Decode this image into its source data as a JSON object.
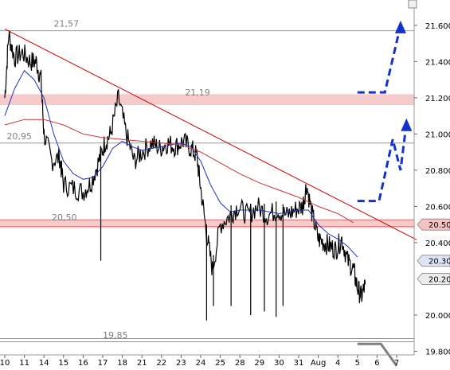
{
  "chart_data": {
    "type": "line",
    "title": "",
    "xlabel": "",
    "ylabel": "",
    "ylim": [
      19.78,
      21.74
    ],
    "y_ticks": [
      "21.600",
      "21.400",
      "21.200",
      "21.000",
      "20.800",
      "20.600",
      "20.400",
      "20.000",
      "19.800"
    ],
    "x_labels": [
      {
        "label": "10",
        "day": 0
      },
      {
        "label": "11",
        "day": 1
      },
      {
        "label": "14",
        "day": 2
      },
      {
        "label": "15",
        "day": 3
      },
      {
        "label": "16",
        "day": 4
      },
      {
        "label": "17",
        "day": 5
      },
      {
        "label": "18",
        "day": 6
      },
      {
        "label": "21",
        "day": 7
      },
      {
        "label": "22",
        "day": 8
      },
      {
        "label": "23",
        "day": 9
      },
      {
        "label": "24",
        "day": 10
      },
      {
        "label": "25",
        "day": 11
      },
      {
        "label": "28",
        "day": 12
      },
      {
        "label": "29",
        "day": 13
      },
      {
        "label": "30",
        "day": 14
      },
      {
        "label": "31",
        "day": 15
      },
      {
        "label": "Aug",
        "day": 16
      },
      {
        "label": "4",
        "day": 17
      },
      {
        "label": "5",
        "day": 18
      },
      {
        "label": "6",
        "day": 19
      },
      {
        "label": "7",
        "day": 20
      }
    ],
    "price_tags": [
      {
        "label": "20.50",
        "y": 20.5,
        "bg": "#f4c2c2"
      },
      {
        "label": "20.30",
        "y": 20.3,
        "bg": "#dde4f6"
      },
      {
        "label": "20.20",
        "y": 20.2,
        "bg": "#ececec"
      }
    ],
    "level_labels": [
      {
        "text": "21,57",
        "y": 21.57,
        "day": 2.5
      },
      {
        "text": "21,19",
        "y": 21.19,
        "day": 9.2
      },
      {
        "text": "20,95",
        "y": 20.95,
        "day": 0.1
      },
      {
        "text": "20,50",
        "y": 20.5,
        "day": 2.4
      },
      {
        "text": "19,85",
        "y": 19.85,
        "day": 5.0
      }
    ],
    "horizontal_lines": [
      {
        "y": 21.57,
        "color": "#999999",
        "width": 1
      },
      {
        "y": 20.95,
        "color": "#999999",
        "width": 1
      },
      {
        "y": 19.87,
        "color": "#7aa457",
        "width": 1
      }
    ],
    "bands": [
      {
        "y1": 21.16,
        "y2": 21.22,
        "color": "#f4c2c2"
      },
      {
        "y1": 20.48,
        "y2": 20.53,
        "color": "#f4c2c2"
      }
    ],
    "band_lines": [
      {
        "y": 20.525,
        "color": "#d98080"
      },
      {
        "y": 20.49,
        "color": "#d98080"
      }
    ],
    "trendline": {
      "color": "#cc0000",
      "points": [
        [
          0,
          21.58
        ],
        [
          20,
          20.46
        ]
      ]
    },
    "series": [
      {
        "name": "",
        "color": "#000000",
        "points": [
          [
            0,
            21.2
          ],
          [
            0.2,
            21.55
          ],
          [
            0.5,
            21.42
          ],
          [
            0.9,
            21.45
          ],
          [
            1.3,
            21.4
          ],
          [
            1.6,
            21.4
          ],
          [
            1.85,
            21.3
          ],
          [
            2.0,
            21.0
          ],
          [
            2.4,
            20.85
          ],
          [
            2.8,
            20.87
          ],
          [
            3.0,
            20.72
          ],
          [
            3.5,
            20.7
          ],
          [
            4.0,
            20.68
          ],
          [
            4.4,
            20.73
          ],
          [
            4.8,
            20.85
          ],
          [
            5.1,
            20.95
          ],
          [
            5.4,
            21.0
          ],
          [
            5.8,
            21.2
          ],
          [
            6.2,
            21.0
          ],
          [
            6.6,
            20.85
          ],
          [
            7.0,
            20.9
          ],
          [
            7.5,
            20.95
          ],
          [
            7.9,
            20.92
          ],
          [
            8.3,
            20.95
          ],
          [
            8.7,
            20.93
          ],
          [
            9.1,
            20.96
          ],
          [
            9.5,
            20.92
          ],
          [
            9.8,
            20.88
          ],
          [
            10.0,
            20.7
          ],
          [
            10.3,
            20.45
          ],
          [
            10.6,
            20.25
          ],
          [
            11.0,
            20.5
          ],
          [
            11.5,
            20.55
          ],
          [
            11.9,
            20.6
          ],
          [
            12.4,
            20.55
          ],
          [
            12.9,
            20.6
          ],
          [
            13.4,
            20.55
          ],
          [
            13.9,
            20.58
          ],
          [
            14.4,
            20.55
          ],
          [
            14.8,
            20.58
          ],
          [
            15.2,
            20.6
          ],
          [
            15.4,
            20.72
          ],
          [
            15.7,
            20.55
          ],
          [
            16.0,
            20.42
          ],
          [
            16.3,
            20.4
          ],
          [
            16.6,
            20.38
          ],
          [
            16.9,
            20.36
          ],
          [
            17.2,
            20.42
          ],
          [
            17.5,
            20.3
          ],
          [
            17.8,
            20.25
          ],
          [
            18.0,
            20.15
          ],
          [
            18.2,
            20.1
          ],
          [
            18.4,
            20.17
          ]
        ]
      },
      {
        "name": "",
        "color": "#2233bb",
        "points": [
          [
            0,
            21.1
          ],
          [
            0.5,
            21.25
          ],
          [
            1.0,
            21.35
          ],
          [
            1.5,
            21.3
          ],
          [
            2.0,
            21.2
          ],
          [
            2.5,
            21.0
          ],
          [
            3.0,
            20.85
          ],
          [
            3.5,
            20.78
          ],
          [
            4.0,
            20.75
          ],
          [
            4.5,
            20.76
          ],
          [
            5.0,
            20.82
          ],
          [
            5.5,
            20.92
          ],
          [
            6.0,
            20.96
          ],
          [
            6.5,
            20.93
          ],
          [
            7.0,
            20.91
          ],
          [
            7.5,
            20.92
          ],
          [
            8.0,
            20.93
          ],
          [
            8.5,
            20.94
          ],
          [
            9.0,
            20.95
          ],
          [
            9.5,
            20.93
          ],
          [
            10.0,
            20.85
          ],
          [
            10.5,
            20.72
          ],
          [
            11.0,
            20.62
          ],
          [
            11.5,
            20.57
          ],
          [
            12.0,
            20.58
          ],
          [
            12.5,
            20.58
          ],
          [
            13.0,
            20.58
          ],
          [
            13.5,
            20.57
          ],
          [
            14.0,
            20.56
          ],
          [
            14.5,
            20.57
          ],
          [
            15.0,
            20.58
          ],
          [
            15.5,
            20.58
          ],
          [
            16.0,
            20.5
          ],
          [
            16.5,
            20.45
          ],
          [
            17.0,
            20.42
          ],
          [
            17.5,
            20.38
          ],
          [
            18.0,
            20.32
          ]
        ]
      },
      {
        "name": "",
        "color": "#cc3333",
        "points": [
          [
            0,
            21.05
          ],
          [
            1.0,
            21.08
          ],
          [
            2.0,
            21.08
          ],
          [
            3.0,
            21.05
          ],
          [
            4.0,
            21.0
          ],
          [
            5.0,
            20.98
          ],
          [
            6.0,
            20.97
          ],
          [
            7.0,
            20.96
          ],
          [
            8.0,
            20.95
          ],
          [
            9.0,
            20.94
          ],
          [
            10.0,
            20.9
          ],
          [
            11.0,
            20.84
          ],
          [
            12.0,
            20.78
          ],
          [
            13.0,
            20.73
          ],
          [
            14.0,
            20.69
          ],
          [
            15.0,
            20.65
          ],
          [
            16.0,
            20.6
          ],
          [
            17.0,
            20.56
          ],
          [
            17.8,
            20.51
          ]
        ]
      }
    ],
    "spikes": [
      {
        "day": 4.9,
        "low": 20.3
      },
      {
        "day": 10.3,
        "low": 19.97
      },
      {
        "day": 10.65,
        "low": 20.05
      },
      {
        "day": 11.55,
        "low": 20.05
      },
      {
        "day": 12.55,
        "low": 20.0
      },
      {
        "day": 13.25,
        "low": 20.02
      },
      {
        "day": 13.85,
        "low": 19.99
      },
      {
        "day": 14.2,
        "low": 20.05
      }
    ],
    "forecast": {
      "color": "#1133cc",
      "upper_path": [
        [
          18.0,
          21.23
        ],
        [
          19.4,
          21.23
        ],
        [
          20.2,
          21.6
        ]
      ],
      "lower_path": [
        [
          18.0,
          20.63
        ],
        [
          19.1,
          20.63
        ],
        [
          19.8,
          20.97
        ],
        [
          20.2,
          20.8
        ],
        [
          20.5,
          21.06
        ]
      ],
      "corner_path": [
        [
          18.0,
          19.84
        ],
        [
          19.2,
          19.84
        ],
        [
          20.0,
          19.72
        ]
      ]
    },
    "grid": false,
    "legend": "none"
  }
}
